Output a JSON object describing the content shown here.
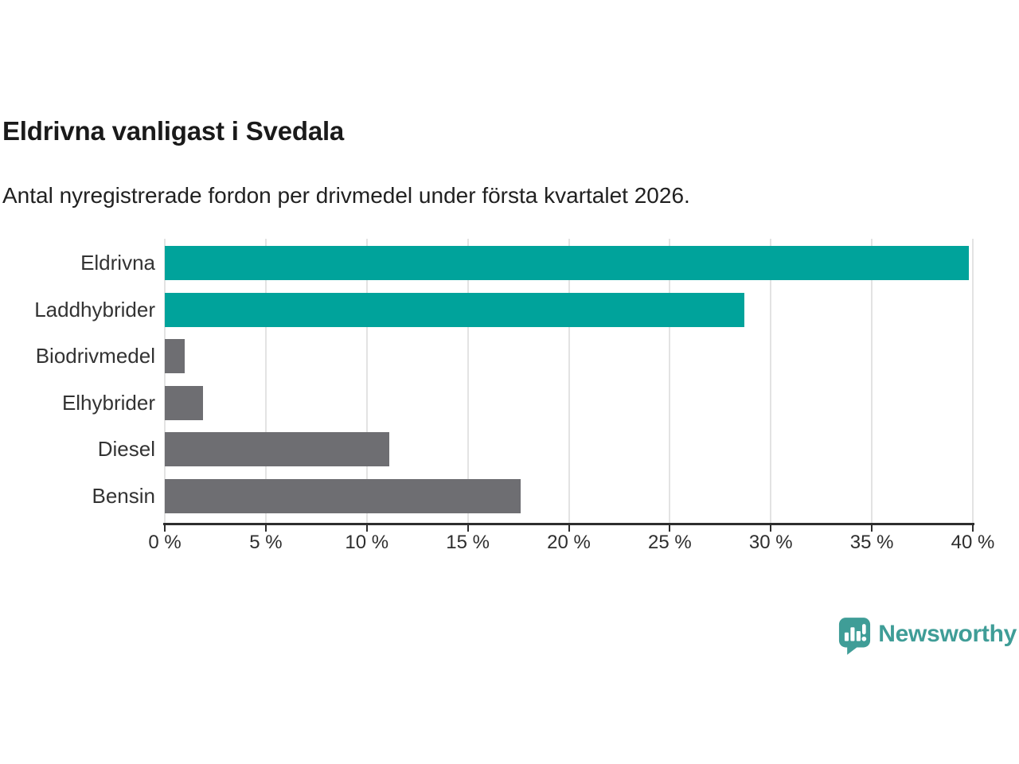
{
  "header": {
    "title": "Eldrivna vanligast i Svedala",
    "subtitle": "Antal nyregistrerade fordon per drivmedel under första kvartalet 2026."
  },
  "chart_data": {
    "type": "bar",
    "orientation": "horizontal",
    "title": "Eldrivna vanligast i Svedala",
    "subtitle": "Antal nyregistrerade fordon per drivmedel under första kvartalet 2026.",
    "categories": [
      "Eldrivna",
      "Laddhybrider",
      "Biodrivmedel",
      "Elhybrider",
      "Diesel",
      "Bensin"
    ],
    "values": [
      39.8,
      28.7,
      1.0,
      1.9,
      11.1,
      17.6
    ],
    "unit": "%",
    "bar_colors": [
      "#00a39b",
      "#00a39b",
      "#6e6e72",
      "#6e6e72",
      "#6e6e72",
      "#6e6e72"
    ],
    "xlabel": "",
    "ylabel": "",
    "xlim": [
      0,
      40
    ],
    "x_ticks": [
      "0 %",
      "5 %",
      "10 %",
      "15 %",
      "20 %",
      "25 %",
      "30 %",
      "35 %",
      "40 %"
    ],
    "x_tick_values": [
      0,
      5,
      10,
      15,
      20,
      25,
      30,
      35,
      40
    ],
    "grid": true,
    "gridline_color": "#e3e3e3",
    "axis_color": "#2e2e2e",
    "legend": "none"
  },
  "branding": {
    "logo_text": "Newsworthy",
    "logo_color": "#3f9d97",
    "logo_icon": "bar-chart-speech-bubble-icon"
  }
}
